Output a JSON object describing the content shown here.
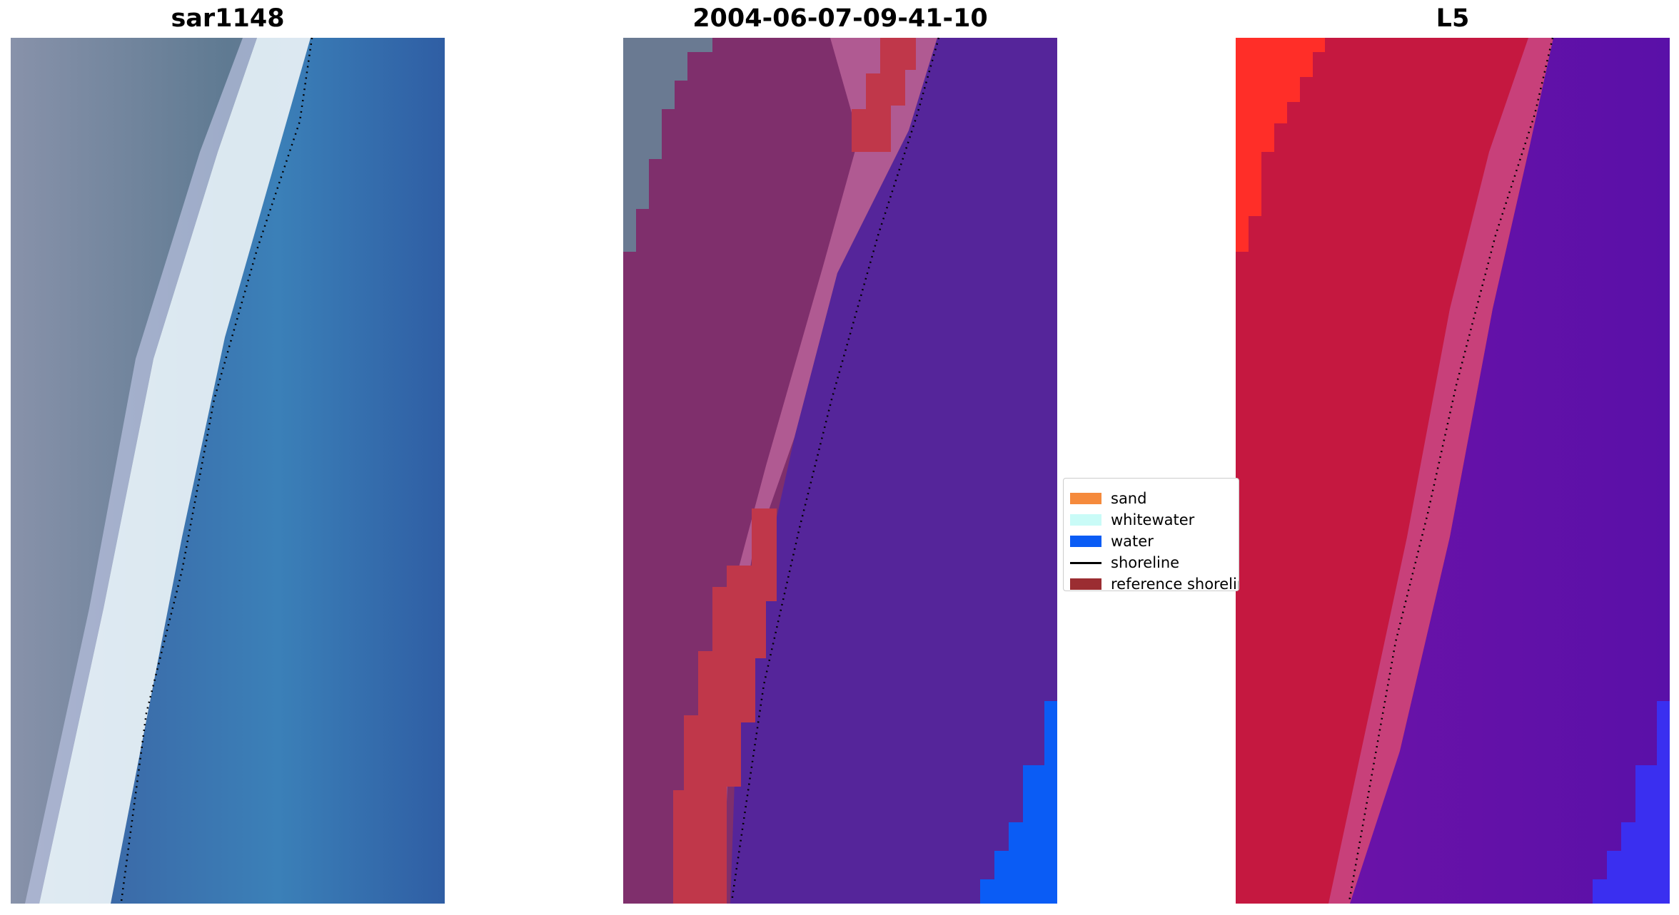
{
  "panels": [
    {
      "id": "rgb",
      "title": "sar1148"
    },
    {
      "id": "classified",
      "title": "2004-06-07-09-41-10"
    },
    {
      "id": "index",
      "title": "L5"
    }
  ],
  "legend": {
    "items": [
      {
        "label": "sand",
        "type": "patch",
        "color": "#f58a3c"
      },
      {
        "label": "whitewater",
        "type": "patch",
        "color": "#c9fbf7"
      },
      {
        "label": "water",
        "type": "patch",
        "color": "#0a5cf5"
      },
      {
        "label": "shoreline",
        "type": "line",
        "color": "#000000"
      },
      {
        "label": "reference shoreline",
        "type": "patch",
        "color": "#9b2d32"
      }
    ]
  },
  "colors": {
    "rgb_water": "#3a6fae",
    "rgb_land": "#6f8aa0",
    "rgb_whitewater": "#eaf6ff",
    "classified_water": "#55259a",
    "classified_land": "#7f2f6c",
    "classified_band": "#b45a94",
    "classified_reference": "#c0374a",
    "classified_deepwater": "#0a5cf5",
    "index_red": "#c8153f",
    "index_bright_red": "#ff2a2a",
    "index_purple": "#6a12a8",
    "index_blue": "#3a2ff0",
    "shoreline": "#000000"
  }
}
